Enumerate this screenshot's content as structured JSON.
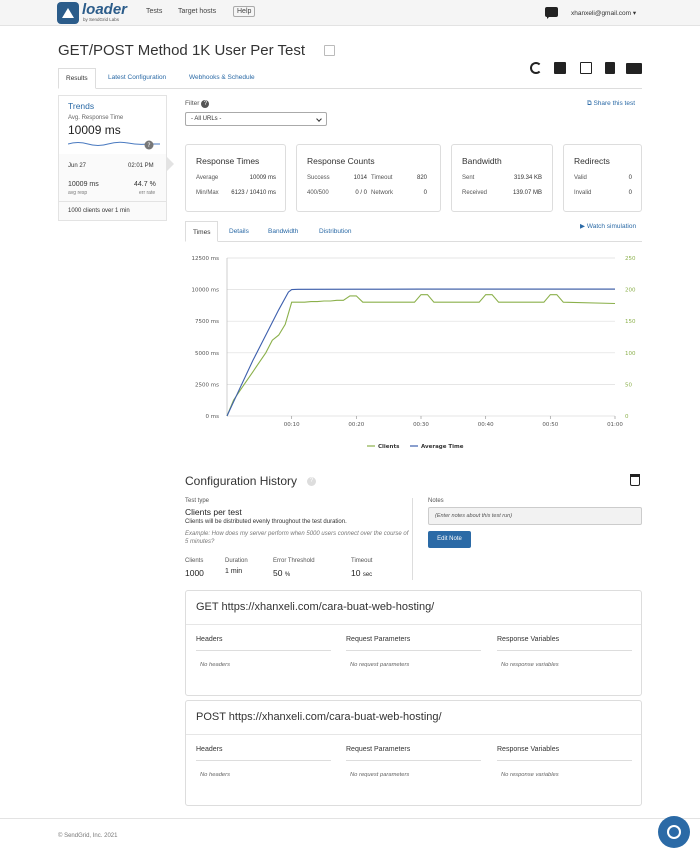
{
  "header": {
    "logo_text": "loader",
    "logo_sub": "by SendGrid Labs",
    "nav": [
      "Tests",
      "Target hosts",
      "Help"
    ],
    "user": "xhanxeli@gmail.com"
  },
  "page": {
    "title": "GET/POST Method 1K User Per Test",
    "tabs": [
      "Results",
      "Latest Configuration",
      "Webhooks & Schedule"
    ]
  },
  "sidebar": {
    "trends": "Trends",
    "avg_label": "Avg. Response Time",
    "avg_value": "10009 ms",
    "date": "Jun 27",
    "time": "02:01 PM",
    "resp": "10009 ms",
    "resp_label": "avg resp",
    "err": "44.7 %",
    "err_label": "err rate",
    "clients": "1000 clients over 1 min"
  },
  "filter": {
    "label": "Filter",
    "selected": "- All URLs -",
    "share": "Share this test"
  },
  "cards": {
    "response_times": {
      "title": "Response Times",
      "avg_label": "Average",
      "avg": "10009 ms",
      "mm_label": "Min/Max",
      "mm": "6123 / 10410 ms"
    },
    "response_counts": {
      "title": "Response Counts",
      "success_label": "Success",
      "success": "1014",
      "timeout_label": "Timeout",
      "timeout": "820",
      "c400_label": "400/500",
      "c400": "0 / 0",
      "network_label": "Network",
      "network": "0"
    },
    "bandwidth": {
      "title": "Bandwidth",
      "sent_label": "Sent",
      "sent": "319.34 KB",
      "recv_label": "Received",
      "recv": "139.07 MB"
    },
    "redirects": {
      "title": "Redirects",
      "valid_label": "Valid",
      "valid": "0",
      "invalid_label": "Invalid",
      "invalid": "0"
    }
  },
  "chart_tabs": [
    "Times",
    "Details",
    "Bandwidth",
    "Distribution"
  ],
  "watch": "Watch simulation",
  "chart_data": {
    "type": "line",
    "x_ticks": [
      "00:10",
      "00:20",
      "00:30",
      "00:40",
      "00:50",
      "01:00"
    ],
    "y_left_ticks": [
      "0 ms",
      "2500 ms",
      "5000 ms",
      "7500 ms",
      "10000 ms",
      "12500 ms"
    ],
    "y_right_ticks": [
      "0",
      "50",
      "100",
      "150",
      "200",
      "250"
    ],
    "ylim_left": [
      0,
      12500
    ],
    "ylim_right": [
      0,
      250
    ],
    "xlim": [
      0,
      60
    ],
    "series": [
      {
        "name": "Clients",
        "axis": "right",
        "color": "#8bb04b",
        "x": [
          0,
          1,
          2,
          3,
          4,
          5,
          6,
          7,
          8,
          9,
          10,
          11,
          12,
          13,
          14,
          15,
          16,
          17,
          18,
          19,
          20,
          21,
          22,
          23,
          29,
          30,
          31,
          32,
          39,
          40,
          41,
          42,
          49,
          50,
          51,
          52,
          60
        ],
        "y": [
          0,
          25,
          40,
          55,
          70,
          85,
          100,
          120,
          128,
          145,
          180,
          180,
          180,
          181,
          181,
          182,
          182,
          183,
          183,
          190,
          190,
          180,
          180,
          180,
          180,
          192,
          192,
          180,
          180,
          192,
          192,
          180,
          180,
          192,
          192,
          180,
          178
        ]
      },
      {
        "name": "Average Time",
        "axis": "left",
        "color": "#3d5fad",
        "x": [
          0,
          2,
          4,
          6,
          8,
          9.5,
          10,
          11,
          20,
          30,
          40,
          50,
          60
        ],
        "y": [
          0,
          2200,
          4400,
          6400,
          8400,
          9800,
          10000,
          10020,
          10030,
          10040,
          10040,
          10040,
          10040
        ]
      }
    ]
  },
  "config": {
    "title": "Configuration History",
    "test_type_label": "Test type",
    "test_type": "Clients per test",
    "desc": "Clients will be distributed evenly throughout the test duration.",
    "example": "Example: How does my server perform when 5000 users connect over the course of 5 minutes?",
    "clients_label": "Clients",
    "clients": "1000",
    "duration_label": "Duration",
    "duration": "1 min",
    "error_label": "Error Threshold",
    "error": "50",
    "error_unit": "%",
    "timeout_label": "Timeout",
    "timeout": "10",
    "timeout_unit": "sec",
    "notes_label": "Notes",
    "notes_placeholder": "(Enter notes about this test run)",
    "edit_note": "Edit Note"
  },
  "requests": [
    {
      "title": "GET https://xhanxeli.com/cara-buat-web-hosting/",
      "headers": "Headers",
      "params": "Request Parameters",
      "vars": "Response Variables",
      "no_headers": "No headers",
      "no_params": "No request parameters",
      "no_vars": "No response variables"
    },
    {
      "title": "POST https://xhanxeli.com/cara-buat-web-hosting/",
      "headers": "Headers",
      "params": "Request Parameters",
      "vars": "Response Variables",
      "no_headers": "No headers",
      "no_params": "No request parameters",
      "no_vars": "No response variables"
    }
  ],
  "footer": "© SendGrid, Inc. 2021"
}
